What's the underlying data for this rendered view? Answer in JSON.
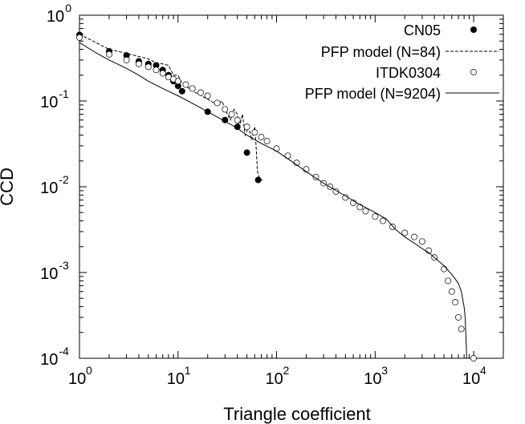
{
  "chart_data": {
    "type": "scatter",
    "title": "",
    "xlabel": "Triangle coefficient",
    "ylabel": "CCD",
    "xscale": "log",
    "yscale": "log",
    "xlim": [
      1,
      20000
    ],
    "ylim": [
      0.0001,
      1
    ],
    "x_ticks": [
      {
        "value": 1,
        "base": "10",
        "exp": "0"
      },
      {
        "value": 10,
        "base": "10",
        "exp": "1"
      },
      {
        "value": 100,
        "base": "10",
        "exp": "2"
      },
      {
        "value": 1000,
        "base": "10",
        "exp": "3"
      },
      {
        "value": 10000,
        "base": "10",
        "exp": "4"
      }
    ],
    "y_ticks": [
      {
        "value": 1,
        "base": "10",
        "exp": "0"
      },
      {
        "value": 0.1,
        "base": "10",
        "exp": "-1"
      },
      {
        "value": 0.01,
        "base": "10",
        "exp": "-2"
      },
      {
        "value": 0.001,
        "base": "10",
        "exp": "-3"
      },
      {
        "value": 0.0001,
        "base": "10",
        "exp": "-4"
      }
    ],
    "legend_position": "top-right",
    "series": [
      {
        "name": "CN05",
        "style": "filled-circle",
        "points": [
          [
            1,
            0.59
          ],
          [
            2,
            0.38
          ],
          [
            3,
            0.34
          ],
          [
            4,
            0.29
          ],
          [
            5,
            0.27
          ],
          [
            6,
            0.26
          ],
          [
            7,
            0.23
          ],
          [
            8,
            0.2
          ],
          [
            9,
            0.17
          ],
          [
            10,
            0.15
          ],
          [
            11,
            0.13
          ],
          [
            20,
            0.075
          ],
          [
            30,
            0.06
          ],
          [
            40,
            0.05
          ],
          [
            50,
            0.025
          ],
          [
            65,
            0.012
          ]
        ]
      },
      {
        "name": "PFP model (N=84)",
        "style": "dashed-line",
        "points": [
          [
            1,
            0.6
          ],
          [
            2,
            0.4
          ],
          [
            3,
            0.36
          ],
          [
            4,
            0.33
          ],
          [
            5,
            0.31
          ],
          [
            6,
            0.28
          ],
          [
            7,
            0.27
          ],
          [
            8,
            0.26
          ],
          [
            9,
            0.2
          ],
          [
            10,
            0.2
          ],
          [
            11,
            0.16
          ],
          [
            13,
            0.14
          ],
          [
            16,
            0.12
          ],
          [
            20,
            0.105
          ],
          [
            25,
            0.09
          ],
          [
            28,
            0.1
          ],
          [
            30,
            0.08
          ],
          [
            34,
            0.06
          ],
          [
            37,
            0.08
          ],
          [
            40,
            0.07
          ],
          [
            42,
            0.05
          ],
          [
            45,
            0.07
          ],
          [
            48,
            0.04
          ],
          [
            52,
            0.05
          ],
          [
            56,
            0.035
          ],
          [
            60,
            0.05
          ],
          [
            62,
            0.03
          ],
          [
            64,
            0.015
          ],
          [
            68,
            0.012
          ],
          [
            72,
            0.012
          ]
        ]
      },
      {
        "name": "ITDK0304",
        "style": "open-circle",
        "points": [
          [
            1,
            0.55
          ],
          [
            2,
            0.35
          ],
          [
            3,
            0.3
          ],
          [
            4,
            0.27
          ],
          [
            5,
            0.25
          ],
          [
            6,
            0.23
          ],
          [
            7,
            0.21
          ],
          [
            8,
            0.19
          ],
          [
            9,
            0.18
          ],
          [
            10,
            0.17
          ],
          [
            12,
            0.155
          ],
          [
            14,
            0.14
          ],
          [
            17,
            0.125
          ],
          [
            20,
            0.115
          ],
          [
            25,
            0.095
          ],
          [
            30,
            0.08
          ],
          [
            35,
            0.07
          ],
          [
            40,
            0.06
          ],
          [
            50,
            0.05
          ],
          [
            60,
            0.043
          ],
          [
            70,
            0.038
          ],
          [
            80,
            0.034
          ],
          [
            100,
            0.028
          ],
          [
            130,
            0.023
          ],
          [
            160,
            0.019
          ],
          [
            200,
            0.016
          ],
          [
            250,
            0.013
          ],
          [
            300,
            0.011
          ],
          [
            350,
            0.01
          ],
          [
            400,
            0.0088
          ],
          [
            500,
            0.0075
          ],
          [
            600,
            0.0065
          ],
          [
            700,
            0.0058
          ],
          [
            800,
            0.0052
          ],
          [
            1000,
            0.0045
          ],
          [
            1200,
            0.004
          ],
          [
            1500,
            0.0034
          ],
          [
            2000,
            0.0029
          ],
          [
            2500,
            0.0026
          ],
          [
            3000,
            0.0023
          ],
          [
            3500,
            0.0018
          ],
          [
            4000,
            0.0015
          ],
          [
            5000,
            0.0011
          ],
          [
            5500,
            0.0008
          ],
          [
            6000,
            0.0006
          ],
          [
            6500,
            0.00045
          ],
          [
            7000,
            0.0003
          ],
          [
            7500,
            0.00022
          ],
          [
            10000,
            0.0001
          ]
        ]
      },
      {
        "name": "PFP model (N=9204)",
        "style": "solid-line",
        "points": [
          [
            1,
            0.48
          ],
          [
            1.5,
            0.36
          ],
          [
            2,
            0.3
          ],
          [
            3,
            0.24
          ],
          [
            4,
            0.2
          ],
          [
            5,
            0.17
          ],
          [
            7,
            0.14
          ],
          [
            10,
            0.115
          ],
          [
            15,
            0.09
          ],
          [
            20,
            0.075
          ],
          [
            30,
            0.058
          ],
          [
            40,
            0.048
          ],
          [
            50,
            0.04
          ],
          [
            70,
            0.032
          ],
          [
            100,
            0.026
          ],
          [
            150,
            0.019
          ],
          [
            200,
            0.015
          ],
          [
            300,
            0.011
          ],
          [
            500,
            0.0078
          ],
          [
            700,
            0.0062
          ],
          [
            1000,
            0.005
          ],
          [
            1300,
            0.0042
          ],
          [
            1600,
            0.0032
          ],
          [
            2000,
            0.0026
          ],
          [
            2500,
            0.0022
          ],
          [
            3000,
            0.0019
          ],
          [
            3500,
            0.0017
          ],
          [
            4000,
            0.0015
          ],
          [
            5000,
            0.0012
          ],
          [
            6000,
            0.00095
          ],
          [
            7000,
            0.00075
          ],
          [
            7500,
            0.0006
          ],
          [
            8000,
            0.0004
          ],
          [
            8200,
            0.0003
          ],
          [
            8400,
            0.00015
          ],
          [
            8500,
            0.0001
          ]
        ]
      }
    ]
  }
}
